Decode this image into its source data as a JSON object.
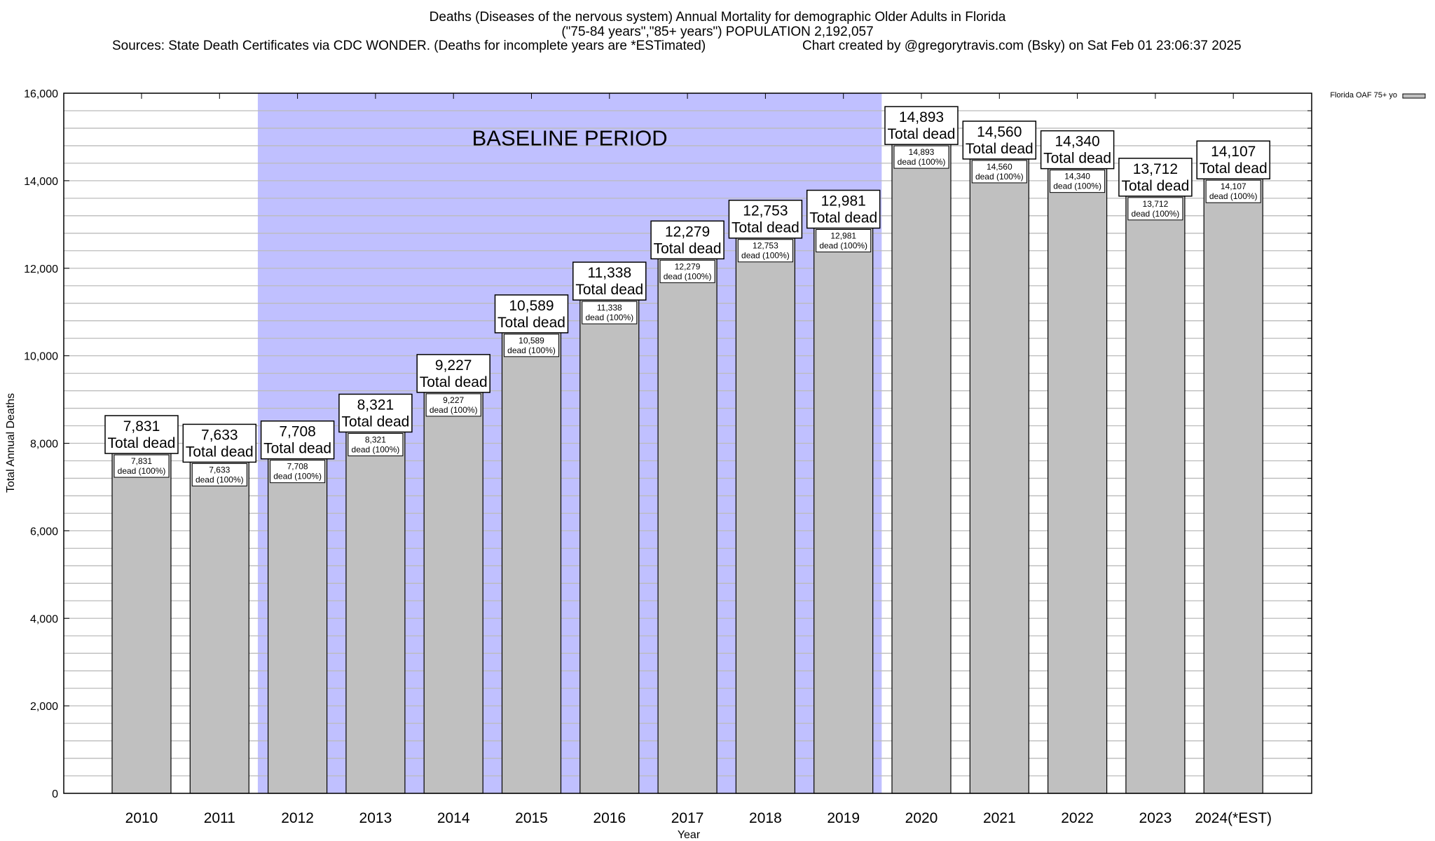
{
  "chart_data": {
    "type": "bar",
    "title": "Deaths (Diseases of the nervous system) Annual Mortality for demographic Older Adults in Florida",
    "subtitle": "(\"75-84 years\",\"85+ years\") POPULATION 2,192,057",
    "sources": "Sources: State Death Certificates via CDC WONDER. (Deaths for incomplete years are *ESTimated)",
    "credit": "Chart created by @gregorytravis.com (Bsky) on Sat Feb 01 23:06:37 2025",
    "xlabel": "Year",
    "ylabel": "Total Annual Deaths",
    "ylim": [
      0,
      16000
    ],
    "ytick_step": 2000,
    "minor_grid_step": 400,
    "grid": true,
    "legend": {
      "placement": "right-top",
      "label": "Florida OAF 75+ yo"
    },
    "categories": [
      "2010",
      "2011",
      "2012",
      "2013",
      "2014",
      "2015",
      "2016",
      "2017",
      "2018",
      "2019",
      "2020",
      "2021",
      "2022",
      "2023",
      "2024(*EST)"
    ],
    "series": [
      {
        "name": "Florida OAF 75+ yo",
        "color": "#c0c0c0",
        "values": [
          7831,
          7633,
          7708,
          8321,
          9227,
          10589,
          11338,
          12279,
          12753,
          12981,
          14893,
          14560,
          14340,
          13712,
          14107
        ]
      }
    ],
    "value_labels": [
      "7,831",
      "7,633",
      "7,708",
      "8,321",
      "9,227",
      "10,589",
      "11,338",
      "12,279",
      "12,753",
      "12,981",
      "14,893",
      "14,560",
      "14,340",
      "13,712",
      "14,107"
    ],
    "total_label": "Total dead",
    "inner_label": "dead (100%)",
    "ytick_labels": [
      "0",
      "2,000",
      "4,000",
      "6,000",
      "8,000",
      "10,000",
      "12,000",
      "14,000",
      "16,000"
    ],
    "annotation": {
      "text": "BASELINE PERIOD",
      "from": "2012",
      "to": "2019",
      "color": "#c0c0ff"
    }
  }
}
